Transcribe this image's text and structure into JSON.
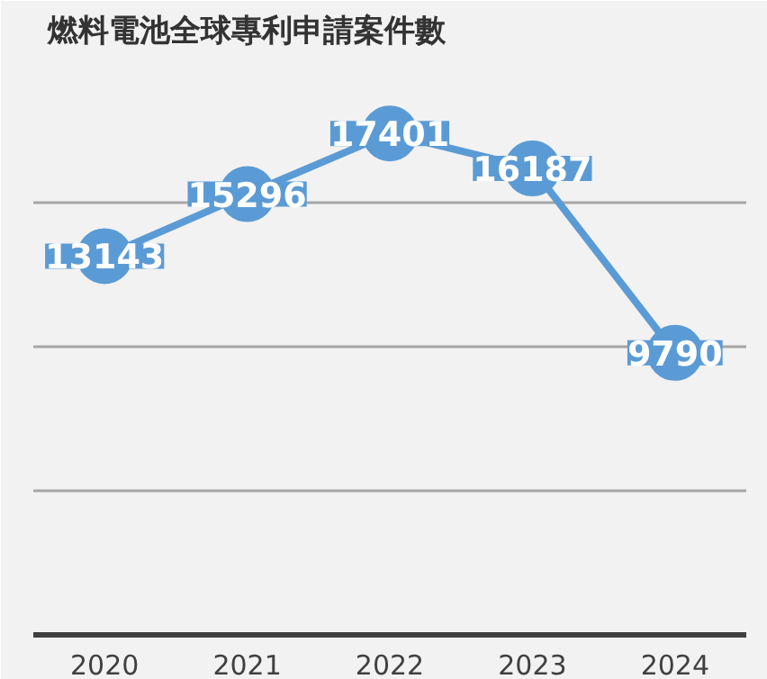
{
  "chart_data": {
    "type": "line",
    "title": "燃料電池全球專利申請案件數",
    "categories": [
      "2020",
      "2021",
      "2022",
      "2023",
      "2024"
    ],
    "series": [
      {
        "color": "#5b9bd5",
        "values": [
          13143,
          15296,
          17401,
          16187,
          9790
        ]
      }
    ],
    "ylim": [
      0,
      20000
    ],
    "yticks": [
      {
        "value": 0,
        "label": null
      },
      {
        "value": 5000,
        "label": null
      },
      {
        "value": 10000,
        "label": null
      },
      {
        "value": 15000,
        "label": null
      },
      {
        "value": 20000,
        "label": null
      }
    ],
    "tick_labels": "x",
    "grid": "y",
    "marker": "circle",
    "line_style": "solid",
    "data_labels": true
  }
}
